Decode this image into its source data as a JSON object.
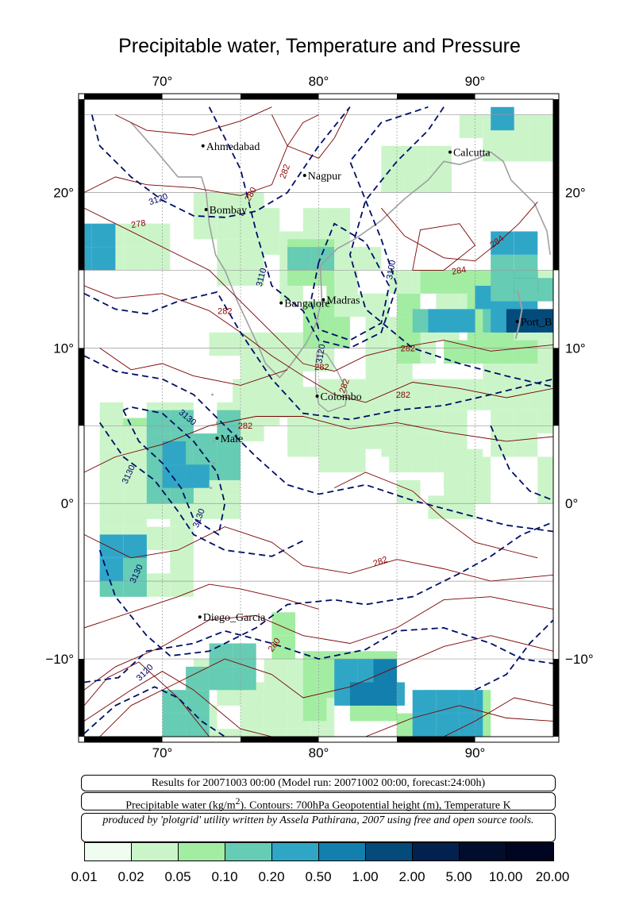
{
  "title": "Precipitable water, Temperature and Pressure",
  "map": {
    "lon_range": [
      65,
      95
    ],
    "lat_range": [
      -15,
      26
    ],
    "lon_ticks": [
      "70°",
      "80°",
      "90°"
    ],
    "lat_ticks": [
      "20°",
      "10°",
      "0°",
      "−10°"
    ],
    "cities": [
      {
        "name": "Ahmedabad",
        "lon": 72.6,
        "lat": 23.0
      },
      {
        "name": "Nagpur",
        "lon": 79.1,
        "lat": 21.1
      },
      {
        "name": "Calcutta",
        "lon": 88.4,
        "lat": 22.6
      },
      {
        "name": "Bombay",
        "lon": 72.8,
        "lat": 18.9
      },
      {
        "name": "Bangalore",
        "lon": 77.6,
        "lat": 12.9
      },
      {
        "name": "Madras",
        "lon": 80.3,
        "lat": 13.1
      },
      {
        "name": "Port_B",
        "lon": 92.7,
        "lat": 11.7
      },
      {
        "name": "Colombo",
        "lon": 79.9,
        "lat": 6.9
      },
      {
        "name": "Male",
        "lon": 73.5,
        "lat": 4.2
      },
      {
        "name": "Diego_Garcia",
        "lon": 72.4,
        "lat": -7.3
      }
    ],
    "temperature_contour_labels": [
      "280",
      "282",
      "278",
      "284",
      "284",
      "282",
      "282",
      "282",
      "282",
      "282",
      "282",
      "282",
      "280"
    ],
    "geopotential_contour_labels": [
      "3120",
      "3110",
      "3100",
      "3120",
      "3130",
      "3130",
      "3130",
      "3130",
      "3120"
    ]
  },
  "info": {
    "line1": "Results for 20071003 00:00 (Model run: 20071002 00:00, forecast:24:00h)",
    "line2_pre": "Precipitable water (kg/m",
    "line2_sup": "2",
    "line2_post": ").  Contours: 700hPa Geopotential height (m), Temperature K",
    "line3": "produced by 'plotgrid' utility written by Assela Pathirana, 2007 using free and open source tools."
  },
  "legend": {
    "colors": [
      "#effcef",
      "#cbf5c9",
      "#a2eda2",
      "#66ccb3",
      "#30a6c7",
      "#137fae",
      "#044a7a",
      "#02214f",
      "#010d2c",
      "#000522"
    ],
    "labels": [
      "0.01",
      "0.02",
      "0.05",
      "0.10",
      "0.20",
      "0.50",
      "1.00",
      "2.00",
      "5.00",
      "10.00",
      "20.00"
    ]
  }
}
